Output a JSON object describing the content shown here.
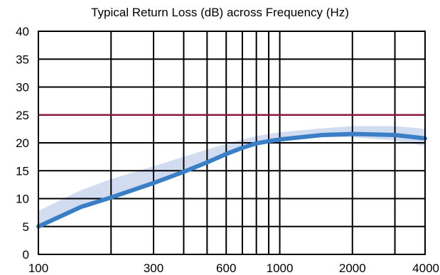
{
  "chart_data": {
    "type": "line",
    "title": "Typical Return Loss (dB) across Frequency (Hz)",
    "xscale": "log",
    "xlim": [
      100,
      4000
    ],
    "ylim": [
      0,
      40
    ],
    "grid": true,
    "x_ticks": [
      100,
      300,
      600,
      1000,
      2000,
      4000
    ],
    "x_tick_labels": [
      "100",
      "300",
      "600",
      "1000",
      "2000",
      "4000"
    ],
    "x_gridlines": [
      100,
      200,
      300,
      400,
      500,
      600,
      700,
      800,
      900,
      1000,
      2000,
      3000,
      4000
    ],
    "y_ticks": [
      0,
      5,
      10,
      15,
      20,
      25,
      30,
      35,
      40
    ],
    "y_tick_labels": [
      "0",
      "5",
      "10",
      "15",
      "20",
      "25",
      "30",
      "35",
      "40"
    ],
    "reference_line": {
      "y": 25,
      "color": "#8b1a3a"
    },
    "series": [
      {
        "color": "#3a7fc5",
        "x": [
          100,
          150,
          200,
          300,
          400,
          500,
          600,
          700,
          800,
          900,
          1000,
          1500,
          2000,
          3000,
          4000
        ],
        "y": [
          5,
          8.5,
          10.2,
          12.8,
          14.8,
          16.5,
          18,
          19.1,
          19.9,
          20.3,
          20.6,
          21.4,
          21.6,
          21.4,
          20.8
        ]
      }
    ],
    "band": {
      "color": "#d2dcf0",
      "x": [
        100,
        150,
        200,
        300,
        400,
        500,
        600,
        700,
        800,
        900,
        1000,
        1500,
        2000,
        3000,
        4000
      ],
      "upper": [
        7.8,
        11.5,
        13.5,
        15.8,
        17.5,
        18.8,
        19.8,
        20.6,
        21.2,
        21.6,
        21.9,
        22.6,
        23.0,
        23.0,
        22.5
      ],
      "lower": [
        5,
        8.5,
        10.2,
        12.8,
        14.8,
        16.5,
        18,
        19.1,
        19.9,
        20.3,
        20.4,
        21.0,
        21.0,
        20.4,
        19.4
      ]
    }
  }
}
